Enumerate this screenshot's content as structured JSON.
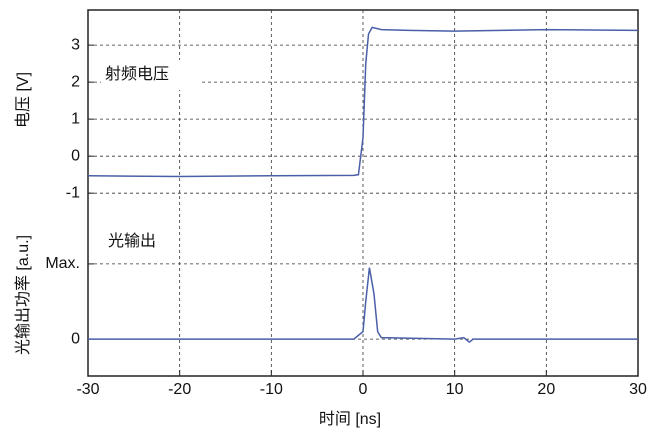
{
  "chart_data": [
    {
      "type": "line",
      "ylabel": "电压 [V]",
      "annotation": "射频电压",
      "xlim": [
        -30,
        30
      ],
      "ylim": [
        -1.59,
        3.95
      ],
      "yticks": [
        3,
        2,
        1,
        0,
        -1
      ],
      "grid": true,
      "x": [
        -30,
        -20,
        -10,
        -1,
        -0.5,
        0,
        0.3,
        0.6,
        1,
        2,
        5,
        10,
        20,
        30
      ],
      "series": [
        {
          "name": null,
          "color": "#4a5fa8",
          "values": [
            -0.53,
            -0.55,
            -0.53,
            -0.52,
            -0.5,
            0.5,
            2.5,
            3.3,
            3.48,
            3.42,
            3.4,
            3.38,
            3.42,
            3.4
          ]
        }
      ]
    },
    {
      "type": "line",
      "ylabel": "光输出功率 [a.u.]",
      "xlabel": "时间 [ns]",
      "annotation": "光输出",
      "xlim": [
        -30,
        30
      ],
      "ylim": [
        -0.49,
        1.65
      ],
      "yticks": [
        0,
        {
          "value": 1,
          "label": "Max."
        }
      ],
      "xticks": [
        -30,
        -20,
        -10,
        0,
        10,
        20,
        30
      ],
      "grid": true,
      "x": [
        -30,
        -1,
        0,
        0.3,
        0.7,
        1.2,
        1.6,
        2,
        10,
        11,
        11.6,
        12,
        30
      ],
      "series": [
        {
          "name": null,
          "color": "#4a5fa8",
          "values": [
            0,
            0,
            0.1,
            0.5,
            0.95,
            0.6,
            0.1,
            0.02,
            0,
            0.02,
            -0.04,
            0,
            0
          ]
        }
      ]
    }
  ]
}
